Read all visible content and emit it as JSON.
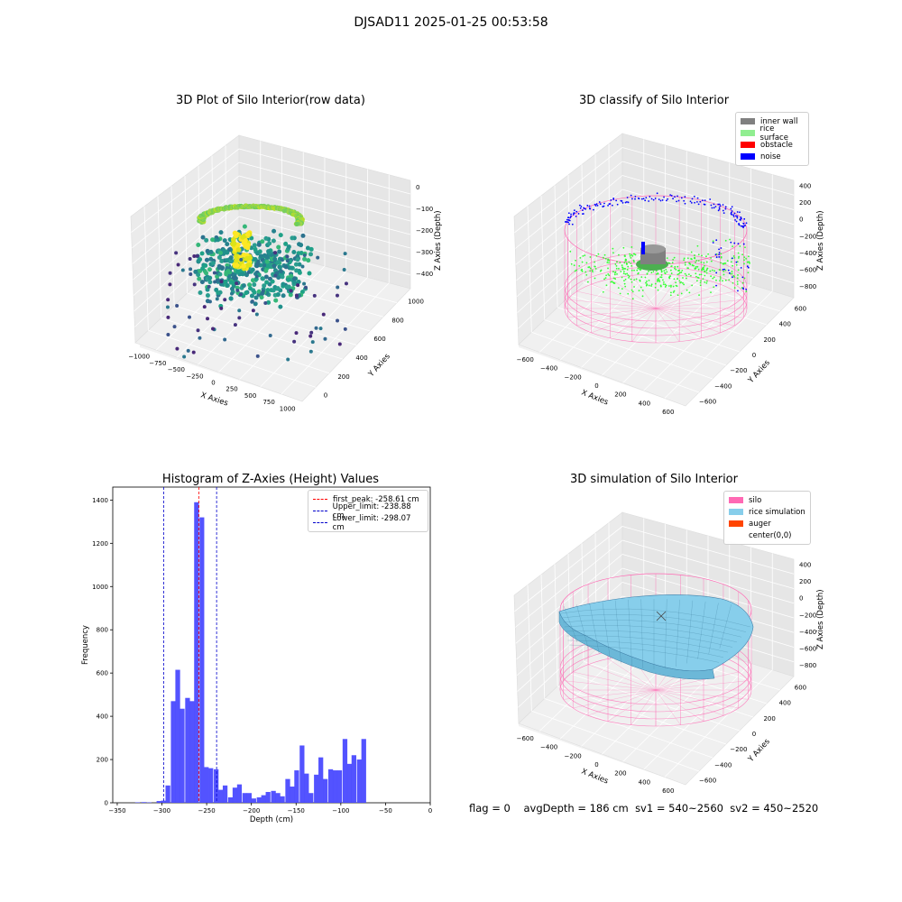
{
  "figure": {
    "title": "DJSAD11 2025-01-25 00:53:58",
    "status": {
      "flag": "flag = 0",
      "avg_depth": "avgDepth = 186 cm",
      "sv1": "sv1 = 540~2560",
      "sv2": "sv2 = 450~2520"
    }
  },
  "colors": {
    "histogram": "#4a4aff",
    "first_peak": "#ff0000",
    "limit": "#0000cc",
    "inner_wall": "#808080",
    "rice_surface": "#90ee90",
    "obstacle": "#ff0000",
    "noise": "#0000ff",
    "silo": "#ff69b4",
    "rice_simulation": "#87ceeb",
    "auger": "#ff4500"
  },
  "chart_data": [
    {
      "type": "scatter",
      "title": "3D Plot of Silo Interior(row data)",
      "xlabel": "X Axies",
      "ylabel": "Y Axies",
      "zlabel": "Z Axies (Depth)",
      "x_ticks": [
        "−1000",
        "−750",
        "−500",
        "−250",
        "0",
        "250",
        "500",
        "750",
        "1000"
      ],
      "y_ticks": [
        "0",
        "200",
        "400",
        "600",
        "800",
        "1000"
      ],
      "z_ticks": [
        "0",
        "−100",
        "−200",
        "−300",
        "−400"
      ]
    },
    {
      "type": "scatter",
      "title": "3D classify of Silo Interior",
      "xlabel": "X Axies",
      "ylabel": "Y Axies",
      "zlabel": "Z Axies (Depth)",
      "x_ticks": [
        "−600",
        "−400",
        "−200",
        "0",
        "200",
        "400",
        "600"
      ],
      "y_ticks": [
        "−600",
        "−400",
        "−200",
        "0",
        "200",
        "400",
        "600"
      ],
      "z_ticks": [
        "400",
        "200",
        "0",
        "−200",
        "−400",
        "−600",
        "−800"
      ],
      "legend": [
        "inner wall",
        "rice surface",
        "obstacle",
        "noise"
      ]
    },
    {
      "type": "bar",
      "title": "Histogram of Z-Axies (Height) Values",
      "xlabel": "Depth (cm)",
      "ylabel": "Frequency",
      "xlim": [
        -355,
        0
      ],
      "ylim": [
        0,
        1460
      ],
      "x_ticks": [
        -350,
        -300,
        -250,
        -200,
        -150,
        -100,
        -50,
        0
      ],
      "y_ticks": [
        0,
        200,
        400,
        600,
        800,
        1000,
        1200,
        1400
      ],
      "bin_width": 5.3,
      "bins": [
        {
          "x": -330,
          "y": 2
        },
        {
          "x": -323,
          "y": 3
        },
        {
          "x": -317,
          "y": 2
        },
        {
          "x": -306,
          "y": 8
        },
        {
          "x": -301,
          "y": 10
        },
        {
          "x": -296,
          "y": 80
        },
        {
          "x": -290,
          "y": 470
        },
        {
          "x": -285,
          "y": 615
        },
        {
          "x": -280,
          "y": 435
        },
        {
          "x": -274,
          "y": 485
        },
        {
          "x": -269,
          "y": 470
        },
        {
          "x": -264,
          "y": 1390
        },
        {
          "x": -258,
          "y": 1320
        },
        {
          "x": -253,
          "y": 165
        },
        {
          "x": -248,
          "y": 160
        },
        {
          "x": -242,
          "y": 155
        },
        {
          "x": -237,
          "y": 60
        },
        {
          "x": -232,
          "y": 80
        },
        {
          "x": -226,
          "y": 25
        },
        {
          "x": -221,
          "y": 70
        },
        {
          "x": -216,
          "y": 85
        },
        {
          "x": -210,
          "y": 45
        },
        {
          "x": -205,
          "y": 45
        },
        {
          "x": -200,
          "y": 20
        },
        {
          "x": -194,
          "y": 25
        },
        {
          "x": -189,
          "y": 35
        },
        {
          "x": -184,
          "y": 50
        },
        {
          "x": -178,
          "y": 55
        },
        {
          "x": -173,
          "y": 45
        },
        {
          "x": -168,
          "y": 30
        },
        {
          "x": -162,
          "y": 110
        },
        {
          "x": -157,
          "y": 75
        },
        {
          "x": -152,
          "y": 150
        },
        {
          "x": -146,
          "y": 265
        },
        {
          "x": -141,
          "y": 135
        },
        {
          "x": -136,
          "y": 45
        },
        {
          "x": -130,
          "y": 130
        },
        {
          "x": -125,
          "y": 210
        },
        {
          "x": -120,
          "y": 110
        },
        {
          "x": -114,
          "y": 155
        },
        {
          "x": -109,
          "y": 150
        },
        {
          "x": -104,
          "y": 150
        },
        {
          "x": -98,
          "y": 295
        },
        {
          "x": -93,
          "y": 180
        },
        {
          "x": -88,
          "y": 220
        },
        {
          "x": -82,
          "y": 200
        },
        {
          "x": -77,
          "y": 295
        }
      ],
      "vlines": [
        {
          "label": "first_peak: -258.61 cm",
          "x": -258.61,
          "kind": "first_peak"
        },
        {
          "label": "Upper_limit: -238.88 cm",
          "x": -238.88,
          "kind": "limit"
        },
        {
          "label": "Lower_limit: -298.07 cm",
          "x": -298.07,
          "kind": "limit"
        }
      ],
      "legend_position": "upper right"
    },
    {
      "type": "area",
      "title": "3D simulation of Silo Interior",
      "xlabel": "X Axies",
      "ylabel": "Y Axies",
      "zlabel": "Z Axies (Depth)",
      "x_ticks": [
        "−600",
        "−400",
        "−200",
        "0",
        "200",
        "400",
        "600"
      ],
      "y_ticks": [
        "−600",
        "−400",
        "−200",
        "0",
        "200",
        "400",
        "600"
      ],
      "z_ticks": [
        "400",
        "200",
        "0",
        "−200",
        "−400",
        "−600",
        "−800"
      ],
      "legend": [
        "silo",
        "rice simulation",
        "auger",
        "center(0,0)"
      ]
    }
  ]
}
